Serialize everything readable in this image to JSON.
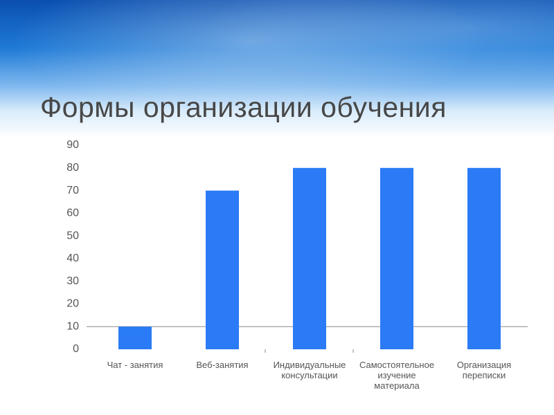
{
  "title": "Формы организации обучения",
  "chart_data": {
    "type": "bar",
    "categories": [
      "Чат - занятия",
      "Веб-занятия",
      "Индивидуальные консультации",
      "Самостоятельное изучение материала",
      "Организация переписки"
    ],
    "values": [
      10,
      70,
      80,
      80,
      80
    ],
    "color": "#2a7bf5",
    "ylim": [
      0,
      90
    ],
    "yticks": [
      0,
      10,
      20,
      30,
      40,
      50,
      60,
      70,
      80,
      90
    ]
  }
}
